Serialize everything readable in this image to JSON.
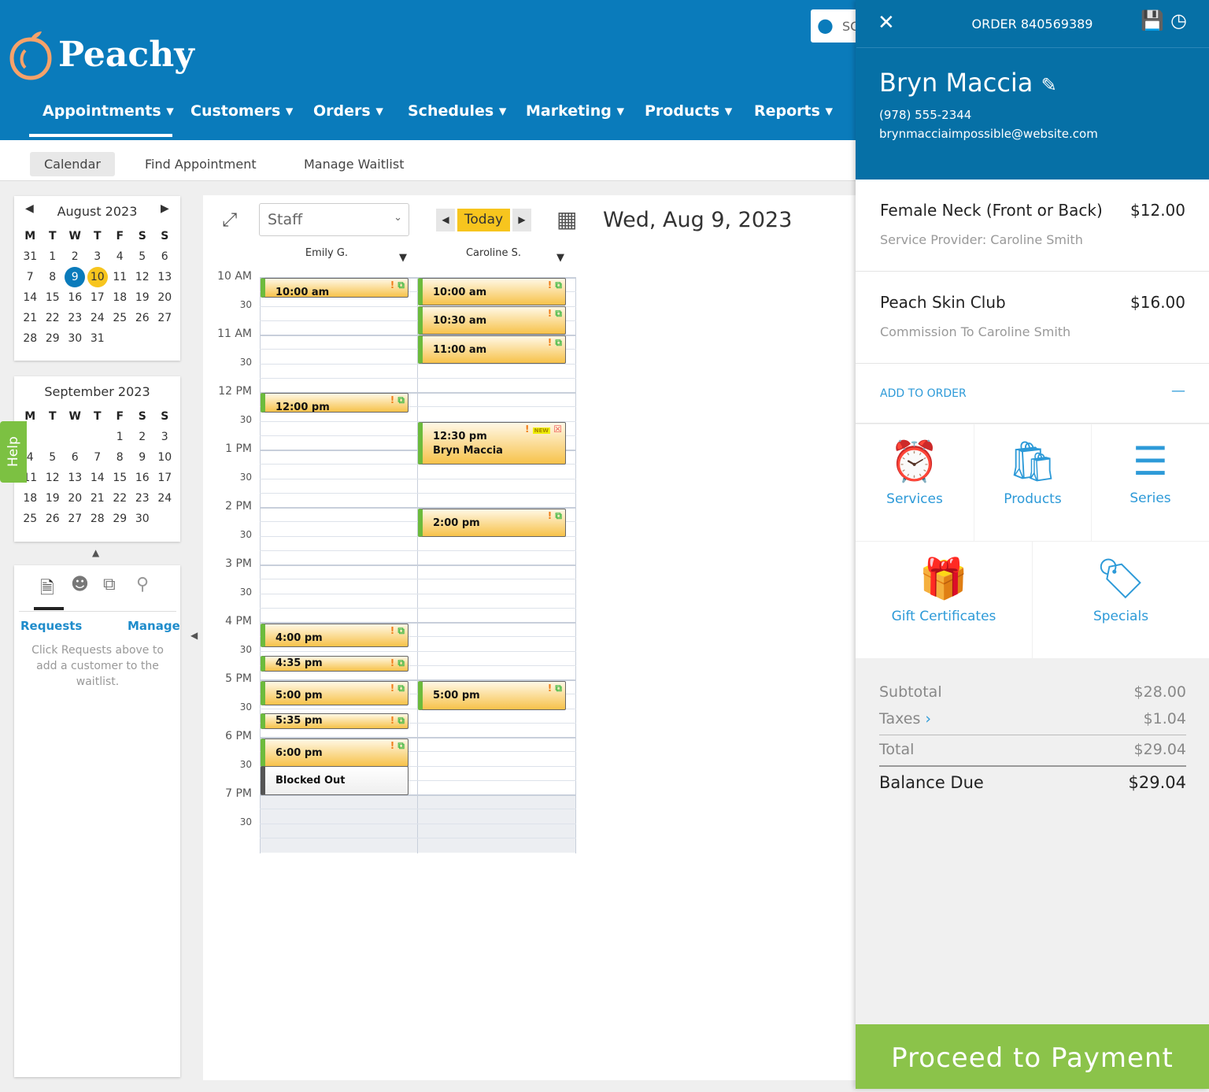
{
  "app": {
    "name": "Peachy"
  },
  "nav": [
    {
      "label": "Appointments"
    },
    {
      "label": "Customers"
    },
    {
      "label": "Orders"
    },
    {
      "label": "Schedules"
    },
    {
      "label": "Marketing"
    },
    {
      "label": "Products"
    },
    {
      "label": "Reports"
    }
  ],
  "subnav": {
    "calendar": "Calendar",
    "find": "Find Appointment",
    "waitlist": "Manage Waitlist"
  },
  "user_search": {
    "value": "SC"
  },
  "mini_cal": [
    {
      "title": "August 2023",
      "dows": [
        "M",
        "T",
        "W",
        "T",
        "F",
        "S",
        "S"
      ],
      "days": [
        31,
        1,
        2,
        3,
        4,
        5,
        6,
        7,
        8,
        9,
        10,
        11,
        12,
        13,
        14,
        15,
        16,
        17,
        18,
        19,
        20,
        21,
        22,
        23,
        24,
        25,
        26,
        27,
        28,
        29,
        30,
        31
      ],
      "selected": 9,
      "today": 10
    },
    {
      "title": "September 2023",
      "dows": [
        "M",
        "T",
        "W",
        "T",
        "F",
        "S",
        "S"
      ],
      "days": [
        "",
        "",
        "",
        "",
        1,
        2,
        3,
        4,
        5,
        6,
        7,
        8,
        9,
        10,
        11,
        12,
        13,
        14,
        15,
        16,
        17,
        18,
        19,
        20,
        21,
        22,
        23,
        24,
        25,
        26,
        27,
        28,
        29,
        30
      ]
    }
  ],
  "help": "Help",
  "waitlist": {
    "requests": "Requests",
    "manage": "Manage",
    "empty": "Click Requests above to add a customer to the waitlist."
  },
  "calendar": {
    "staff_select": "Staff",
    "today": "Today",
    "date": "Wed, Aug 9, 2023",
    "columns": [
      "Emily G.",
      "Caroline S."
    ],
    "times": [
      "10 AM",
      "30",
      "11 AM",
      "30",
      "12 PM",
      "30",
      "1 PM",
      "30",
      "2 PM",
      "30",
      "3 PM",
      "30",
      "4 PM",
      "30",
      "5 PM",
      "30",
      "6 PM",
      "30",
      "7 PM",
      "30"
    ],
    "events": [
      {
        "col": 0,
        "time": "10:00 am"
      },
      {
        "col": 0,
        "time": "12:00 pm"
      },
      {
        "col": 0,
        "time": "4:00 pm"
      },
      {
        "col": 0,
        "time": "4:35 pm"
      },
      {
        "col": 0,
        "time": "5:00 pm"
      },
      {
        "col": 0,
        "time": "5:35 pm"
      },
      {
        "col": 0,
        "time": "6:00 pm"
      },
      {
        "col": 0,
        "time": "Blocked Out"
      },
      {
        "col": 1,
        "time": "10:00 am"
      },
      {
        "col": 1,
        "time": "10:30 am"
      },
      {
        "col": 1,
        "time": "11:00 am"
      },
      {
        "col": 1,
        "time": "12:30 pm",
        "name": "Bryn Maccia",
        "badge": "NEW"
      },
      {
        "col": 1,
        "time": "2:00 pm"
      },
      {
        "col": 1,
        "time": "5:00 pm"
      }
    ]
  },
  "order": {
    "title": "ORDER 840569389",
    "customer": "Bryn Maccia",
    "phone": "(978) 555-2344",
    "email": "brynmacciaimpossible@website.com",
    "items": [
      {
        "name": "Female Neck (Front or Back)",
        "price": "$12.00",
        "sub": "Service Provider: Caroline Smith"
      },
      {
        "name": "Peach Skin Club",
        "price": "$16.00",
        "sub": "Commission To Caroline Smith"
      }
    ],
    "add_to_order": "ADD TO ORDER",
    "tiles": [
      "Services",
      "Products",
      "Series",
      "Gift Certificates",
      "Specials"
    ],
    "subtotal_label": "Subtotal",
    "subtotal": "$28.00",
    "taxes_label": "Taxes",
    "taxes": "$1.04",
    "total_label": "Total",
    "total": "$29.04",
    "balance_label": "Balance Due",
    "balance": "$29.04",
    "pay": "Proceed to Payment"
  },
  "colors": {
    "brand_blue": "#0a7bbb",
    "panel_blue": "#0670a6",
    "pay_green": "#8bc34a",
    "event_yellow": "#f7c24a",
    "today_yellow": "#f7c51e"
  }
}
